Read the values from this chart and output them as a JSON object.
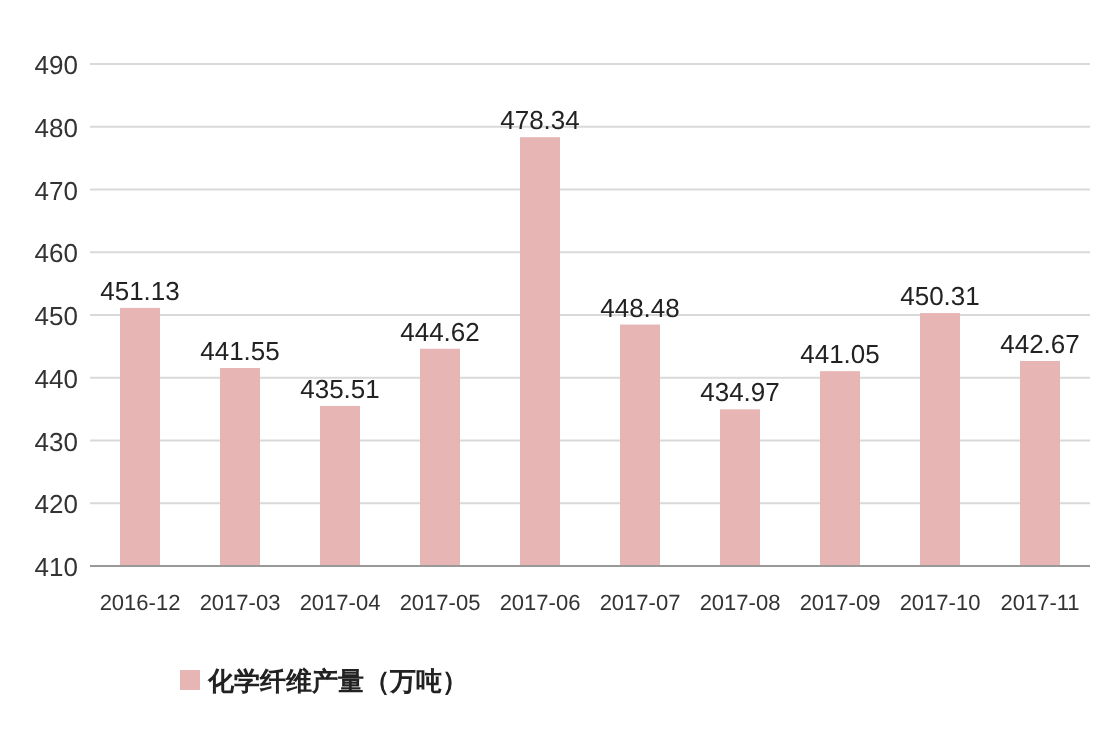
{
  "chart_data": {
    "type": "bar",
    "categories": [
      "2016-12",
      "2017-03",
      "2017-04",
      "2017-05",
      "2017-06",
      "2017-07",
      "2017-08",
      "2017-09",
      "2017-10",
      "2017-11"
    ],
    "series": [
      {
        "name": "化学纤维产量（万吨）",
        "color": "#e8b5b5",
        "values": [
          451.13,
          441.55,
          435.51,
          444.62,
          478.34,
          448.48,
          434.97,
          441.05,
          450.31,
          442.67
        ]
      }
    ],
    "ylim": [
      410,
      490
    ],
    "yticks": [
      410,
      420,
      430,
      440,
      450,
      460,
      470,
      480,
      490
    ],
    "grid": "y",
    "legend": "bottom left",
    "data_labels": true
  }
}
